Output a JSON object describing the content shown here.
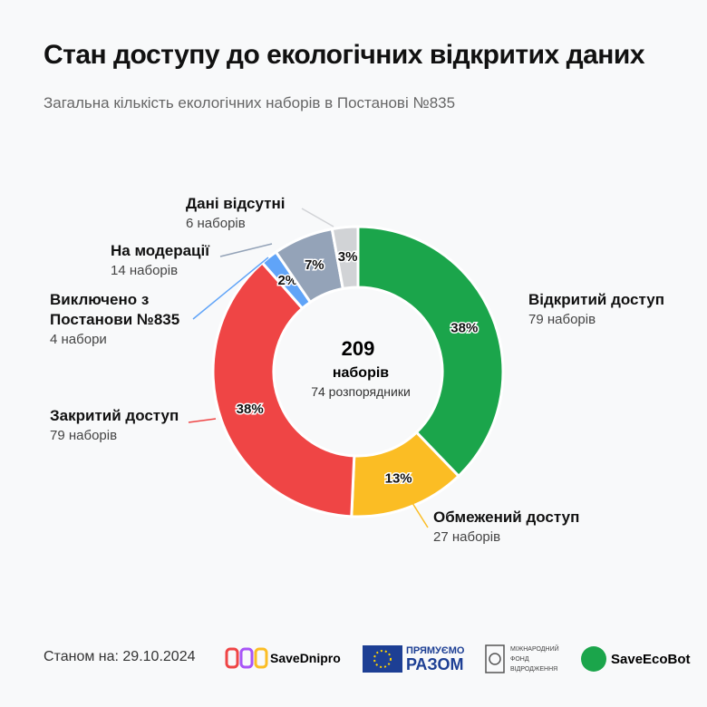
{
  "chart_data": {
    "type": "donut",
    "title": "Стан доступу до екологічних відкритих даних",
    "subtitle": "Загальна кількість екологічних наборів в Постанові №835",
    "categories": [
      "Відкритий доступ",
      "Обмежений доступ",
      "Закритий доступ",
      "Виключено з Постанови №835",
      "На модерації",
      "Дані відсутні"
    ],
    "values": [
      79,
      27,
      79,
      4,
      14,
      6
    ],
    "value_labels": [
      "79 наборів",
      "27 наборів",
      "79 наборів",
      "4 набори",
      "14 наборів",
      "6 наборів"
    ],
    "percentages": [
      38,
      13,
      38,
      2,
      7,
      3
    ],
    "percentage_labels": [
      "38%",
      "13%",
      "38%",
      "2%",
      "7%",
      "3%"
    ],
    "colors": [
      "#1ba54b",
      "#fbbd24",
      "#ef4545",
      "#60a4f8",
      "#94a3b8",
      "#d1d3d6"
    ],
    "center": {
      "total": 209,
      "total_unit": "наборів",
      "note": "74 розпорядники"
    }
  },
  "footer": {
    "date": "Станом на: 29.10.2024",
    "logos": [
      "SaveDnipro",
      "ПРЯМУЄМО",
      "РАЗОМ",
      "МІЖНАРОДНИЙ",
      "ФОНД",
      "ВІДРОДЖЕННЯ",
      "SaveEcoBot"
    ]
  }
}
